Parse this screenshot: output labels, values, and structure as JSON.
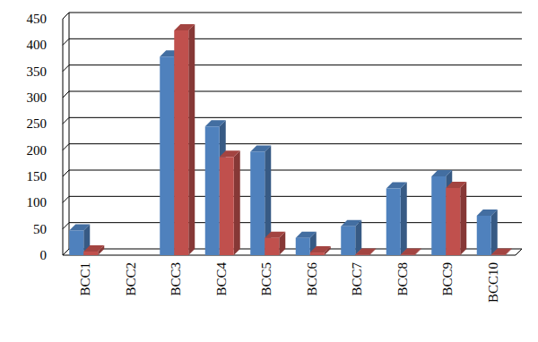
{
  "chart_data": {
    "type": "bar",
    "categories": [
      "BCC1",
      "BCC2",
      "BCC3",
      "BCC4",
      "BCC5",
      "BCC6",
      "BCC7",
      "BCC8",
      "BCC9",
      "BCC10"
    ],
    "series": [
      {
        "color": "#4f81bd",
        "values": [
          47,
          0,
          378,
          245,
          197,
          33,
          55,
          127,
          150,
          75
        ]
      },
      {
        "color": "#c0504d",
        "values": [
          7,
          0,
          428,
          187,
          33,
          5,
          1,
          1,
          128,
          1
        ]
      }
    ],
    "ylim": [
      0,
      450
    ],
    "yticks": [
      0,
      50,
      100,
      150,
      200,
      250,
      300,
      350,
      400,
      450
    ],
    "grid": true
  }
}
